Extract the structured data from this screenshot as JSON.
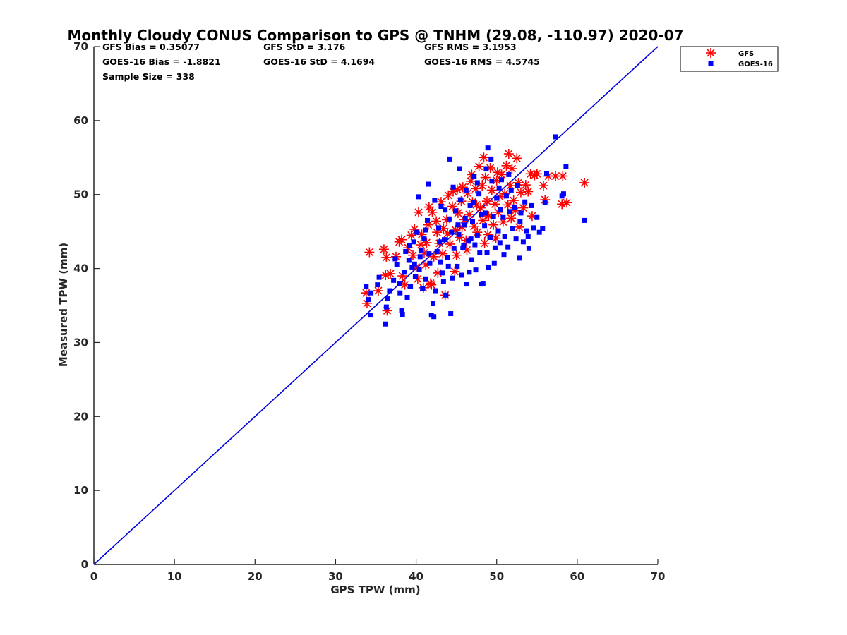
{
  "chart_data": {
    "type": "scatter",
    "title": "Monthly Cloudy CONUS Comparison to GPS @ TNHM (29.08, -110.97) 2020-07",
    "xlabel": "GPS TPW (mm)",
    "ylabel": "Measured TPW (mm)",
    "xlim": [
      0,
      70
    ],
    "ylim": [
      0,
      70
    ],
    "xticks": [
      "0",
      "10",
      "20",
      "30",
      "40",
      "50",
      "60",
      "70"
    ],
    "yticks": [
      "0",
      "10",
      "20",
      "30",
      "40",
      "50",
      "60",
      "70"
    ],
    "grid": false,
    "legend_position": "outside-top-right",
    "stats": [
      "GFS Bias = 0.35077",
      "GFS StD = 3.176",
      "GFS RMS = 3.1953",
      "GOES-16 Bias = -1.8821",
      "GOES-16 StD = 4.1694",
      "GOES-16 RMS = 4.5745",
      "Sample Size = 338"
    ],
    "reference_line": {
      "name": "1:1",
      "color": "#0000dd",
      "from": [
        0,
        0
      ],
      "to": [
        70,
        70
      ]
    },
    "series": [
      {
        "name": "GFS",
        "marker": "asterisk",
        "color": "#ff0000",
        "points": [
          [
            34.2,
            42.2
          ],
          [
            33.8,
            36.7
          ],
          [
            33.9,
            35.3
          ],
          [
            35.3,
            37.0
          ],
          [
            36.0,
            42.6
          ],
          [
            36.3,
            41.5
          ],
          [
            36.4,
            34.3
          ],
          [
            36.2,
            39.1
          ],
          [
            36.8,
            39.3
          ],
          [
            37.5,
            41.6
          ],
          [
            37.9,
            43.6
          ],
          [
            38.2,
            43.9
          ],
          [
            38.3,
            39.0
          ],
          [
            39.0,
            42.8
          ],
          [
            39.4,
            44.5
          ],
          [
            39.8,
            45.3
          ],
          [
            40.0,
            40.2
          ],
          [
            40.3,
            47.6
          ],
          [
            40.2,
            38.6
          ],
          [
            40.7,
            44.6
          ],
          [
            40.9,
            37.4
          ],
          [
            41.0,
            42.1
          ],
          [
            41.3,
            43.5
          ],
          [
            41.5,
            45.9
          ],
          [
            41.6,
            48.3
          ],
          [
            41.8,
            38.0
          ],
          [
            41.9,
            37.8
          ],
          [
            42.2,
            41.6
          ],
          [
            42.5,
            46.4
          ],
          [
            42.6,
            44.9
          ],
          [
            42.9,
            43.4
          ],
          [
            43.3,
            42.0
          ],
          [
            43.4,
            45.4
          ],
          [
            43.6,
            36.4
          ],
          [
            43.8,
            46.6
          ],
          [
            44.0,
            49.9
          ],
          [
            44.2,
            43.3
          ],
          [
            44.5,
            48.4
          ],
          [
            44.6,
            50.4
          ],
          [
            44.9,
            45.2
          ],
          [
            45.0,
            41.8
          ],
          [
            45.2,
            47.5
          ],
          [
            45.4,
            44.2
          ],
          [
            45.6,
            49.1
          ],
          [
            45.8,
            51.0
          ],
          [
            46.0,
            46.6
          ],
          [
            46.2,
            43.8
          ],
          [
            46.4,
            50.2
          ],
          [
            46.6,
            47.3
          ],
          [
            46.8,
            51.8
          ],
          [
            47.0,
            49.0
          ],
          [
            47.2,
            45.7
          ],
          [
            47.4,
            50.8
          ],
          [
            47.6,
            44.9
          ],
          [
            47.8,
            53.8
          ],
          [
            48.0,
            48.2
          ],
          [
            48.2,
            51.2
          ],
          [
            48.3,
            46.5
          ],
          [
            48.5,
            43.4
          ],
          [
            48.6,
            52.3
          ],
          [
            48.8,
            49.1
          ],
          [
            49.0,
            47.1
          ],
          [
            49.2,
            53.6
          ],
          [
            49.4,
            50.6
          ],
          [
            49.6,
            45.9
          ],
          [
            49.8,
            48.7
          ],
          [
            50.0,
            51.9
          ],
          [
            50.2,
            47.6
          ],
          [
            50.4,
            49.7
          ],
          [
            50.6,
            52.7
          ],
          [
            50.8,
            46.3
          ],
          [
            51.0,
            50.1
          ],
          [
            51.2,
            53.9
          ],
          [
            51.4,
            48.6
          ],
          [
            51.5,
            55.5
          ],
          [
            51.7,
            51.2
          ],
          [
            51.9,
            53.5
          ],
          [
            52.1,
            49.2
          ],
          [
            52.3,
            47.8
          ],
          [
            52.5,
            54.9
          ],
          [
            52.7,
            51.6
          ],
          [
            53.0,
            50.3
          ],
          [
            53.3,
            48.2
          ],
          [
            53.6,
            51.3
          ],
          [
            53.9,
            50.4
          ],
          [
            54.2,
            52.8
          ],
          [
            54.4,
            47.1
          ],
          [
            54.7,
            52.6
          ],
          [
            55.0,
            52.8
          ],
          [
            55.8,
            51.2
          ],
          [
            56.0,
            49.3
          ],
          [
            56.4,
            52.5
          ],
          [
            57.3,
            52.5
          ],
          [
            58.2,
            52.5
          ],
          [
            58.1,
            48.7
          ],
          [
            58.7,
            48.9
          ],
          [
            60.9,
            51.6
          ],
          [
            43.9,
            44.7
          ],
          [
            45.1,
            50.7
          ],
          [
            46.3,
            42.5
          ],
          [
            47.5,
            48.6
          ],
          [
            48.9,
            44.6
          ],
          [
            50.1,
            53.0
          ],
          [
            39.6,
            41.8
          ],
          [
            42.0,
            47.6
          ],
          [
            38.6,
            37.8
          ],
          [
            44.8,
            39.6
          ],
          [
            52.8,
            45.6
          ],
          [
            49.9,
            44.1
          ],
          [
            46.9,
            52.7
          ],
          [
            41.2,
            40.5
          ],
          [
            43.1,
            49.0
          ],
          [
            51.8,
            46.8
          ],
          [
            48.4,
            55.0
          ],
          [
            45.7,
            45.6
          ],
          [
            40.6,
            43.2
          ],
          [
            42.7,
            39.4
          ]
        ]
      },
      {
        "name": "GOES-16",
        "marker": "square",
        "color": "#0000ff",
        "points": [
          [
            33.8,
            37.6
          ],
          [
            34.1,
            35.8
          ],
          [
            34.3,
            33.7
          ],
          [
            34.4,
            36.7
          ],
          [
            35.2,
            37.8
          ],
          [
            35.4,
            38.8
          ],
          [
            36.2,
            32.5
          ],
          [
            36.3,
            34.8
          ],
          [
            36.4,
            35.9
          ],
          [
            36.7,
            37.0
          ],
          [
            37.2,
            38.4
          ],
          [
            37.4,
            41.3
          ],
          [
            37.6,
            40.5
          ],
          [
            37.9,
            38.0
          ],
          [
            38.0,
            36.7
          ],
          [
            38.2,
            34.3
          ],
          [
            38.3,
            33.8
          ],
          [
            38.5,
            39.5
          ],
          [
            38.7,
            42.3
          ],
          [
            38.9,
            36.1
          ],
          [
            39.1,
            41.1
          ],
          [
            39.3,
            37.6
          ],
          [
            39.5,
            40.2
          ],
          [
            39.7,
            43.6
          ],
          [
            39.9,
            38.9
          ],
          [
            40.1,
            44.9
          ],
          [
            40.3,
            49.7
          ],
          [
            40.4,
            39.9
          ],
          [
            40.6,
            42.5
          ],
          [
            40.8,
            37.3
          ],
          [
            41.0,
            44.0
          ],
          [
            41.2,
            38.6
          ],
          [
            41.4,
            46.5
          ],
          [
            41.5,
            51.4
          ],
          [
            41.7,
            40.7
          ],
          [
            41.9,
            33.7
          ],
          [
            42.1,
            35.3
          ],
          [
            42.2,
            33.5
          ],
          [
            42.4,
            37.0
          ],
          [
            42.6,
            42.3
          ],
          [
            42.8,
            45.5
          ],
          [
            43.0,
            40.9
          ],
          [
            43.1,
            48.4
          ],
          [
            43.3,
            39.4
          ],
          [
            43.5,
            43.9
          ],
          [
            43.7,
            36.4
          ],
          [
            43.9,
            41.5
          ],
          [
            44.1,
            46.7
          ],
          [
            44.2,
            54.8
          ],
          [
            44.3,
            33.9
          ],
          [
            44.5,
            38.7
          ],
          [
            44.7,
            42.7
          ],
          [
            44.9,
            47.8
          ],
          [
            45.1,
            40.3
          ],
          [
            45.3,
            44.6
          ],
          [
            45.5,
            49.3
          ],
          [
            45.6,
            39.1
          ],
          [
            45.8,
            42.8
          ],
          [
            46.0,
            45.9
          ],
          [
            46.2,
            50.6
          ],
          [
            46.3,
            37.9
          ],
          [
            46.5,
            43.7
          ],
          [
            46.7,
            48.5
          ],
          [
            46.9,
            41.2
          ],
          [
            47.0,
            46.3
          ],
          [
            47.2,
            52.4
          ],
          [
            47.4,
            39.8
          ],
          [
            47.6,
            44.5
          ],
          [
            47.8,
            50.1
          ],
          [
            47.9,
            42.1
          ],
          [
            48.1,
            47.3
          ],
          [
            48.3,
            38.0
          ],
          [
            48.5,
            45.8
          ],
          [
            48.7,
            53.5
          ],
          [
            48.9,
            56.3
          ],
          [
            49.0,
            40.1
          ],
          [
            49.2,
            44.2
          ],
          [
            49.4,
            51.8
          ],
          [
            49.6,
            47.0
          ],
          [
            49.8,
            42.8
          ],
          [
            50.0,
            49.5
          ],
          [
            50.2,
            45.1
          ],
          [
            50.4,
            43.5
          ],
          [
            50.6,
            52.0
          ],
          [
            50.8,
            46.9
          ],
          [
            51.0,
            44.3
          ],
          [
            51.2,
            49.8
          ],
          [
            51.4,
            42.9
          ],
          [
            51.6,
            47.7
          ],
          [
            51.8,
            50.6
          ],
          [
            52.0,
            45.4
          ],
          [
            52.2,
            48.3
          ],
          [
            52.4,
            44.0
          ],
          [
            52.6,
            51.2
          ],
          [
            52.8,
            41.4
          ],
          [
            53.0,
            47.5
          ],
          [
            53.3,
            43.6
          ],
          [
            53.5,
            49.0
          ],
          [
            53.7,
            45.1
          ],
          [
            54.0,
            42.7
          ],
          [
            54.3,
            48.5
          ],
          [
            54.6,
            45.5
          ],
          [
            55.0,
            46.9
          ],
          [
            55.3,
            44.9
          ],
          [
            55.7,
            45.4
          ],
          [
            56.0,
            48.9
          ],
          [
            56.2,
            52.8
          ],
          [
            57.3,
            57.8
          ],
          [
            58.3,
            50.1
          ],
          [
            58.1,
            49.8
          ],
          [
            58.6,
            53.8
          ],
          [
            60.9,
            46.5
          ],
          [
            45.4,
            53.5
          ],
          [
            47.6,
            51.6
          ],
          [
            49.3,
            54.8
          ],
          [
            46.6,
            39.5
          ],
          [
            48.1,
            37.9
          ],
          [
            44.0,
            40.3
          ],
          [
            42.9,
            43.6
          ],
          [
            41.2,
            45.2
          ],
          [
            40.5,
            41.6
          ],
          [
            39.2,
            43.1
          ],
          [
            43.6,
            47.9
          ],
          [
            47.3,
            43.2
          ],
          [
            50.9,
            41.9
          ],
          [
            53.9,
            44.3
          ],
          [
            51.5,
            52.7
          ],
          [
            49.7,
            40.7
          ],
          [
            46.1,
            46.8
          ],
          [
            44.6,
            51.0
          ],
          [
            42.3,
            49.2
          ],
          [
            45.9,
            43.1
          ],
          [
            48.6,
            47.5
          ],
          [
            50.5,
            48.0
          ],
          [
            52.9,
            46.3
          ],
          [
            39.8,
            40.6
          ],
          [
            41.6,
            42.0
          ],
          [
            43.4,
            38.2
          ],
          [
            45.2,
            45.9
          ],
          [
            47.1,
            48.9
          ],
          [
            48.8,
            42.2
          ],
          [
            50.3,
            50.9
          ],
          [
            46.8,
            44.0
          ],
          [
            44.4,
            44.9
          ]
        ]
      }
    ]
  }
}
